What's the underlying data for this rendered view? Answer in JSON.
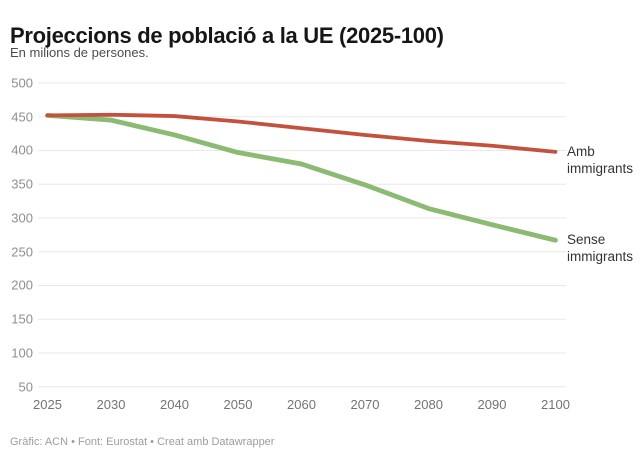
{
  "header": {
    "title": "Projeccions de població a la UE (2025-100)",
    "subtitle": "En milions de persones."
  },
  "footer": {
    "credit": "Gràfic: ACN • Font: Eurostat • Creat amb Datawrapper"
  },
  "colors": {
    "amb_immigrants": "#c3513d",
    "sense_immigrants": "#8bba73",
    "gridline": "#e8e8e8",
    "y_tick_text": "#8f8f8f",
    "x_tick_text": "#747474",
    "series_label_text": "#333333"
  },
  "chart_data": {
    "type": "line",
    "title": "Projeccions de població a la UE (2025-100)",
    "subtitle": "En milions de persones.",
    "x_tick_labels": [
      "2025",
      "2030",
      "2040",
      "2050",
      "2060",
      "2070",
      "2080",
      "2090",
      "2100"
    ],
    "x_axis_note": "category axis - all ticks equally spaced",
    "y_ticks": [
      500,
      450,
      400,
      350,
      300,
      250,
      200,
      150,
      100,
      50
    ],
    "ylim": [
      50,
      500
    ],
    "grid": true,
    "legend_position": "direct labels at right ends of lines",
    "series": [
      {
        "name": "Amb immigrants",
        "color": "#c3513d",
        "values": [
          452,
          453,
          451,
          443,
          433,
          423,
          414,
          407,
          398
        ]
      },
      {
        "name": "Sense immigrants",
        "color": "#8bba73",
        "values": [
          452,
          445,
          423,
          397,
          380,
          349,
          314,
          290,
          267
        ]
      }
    ]
  }
}
